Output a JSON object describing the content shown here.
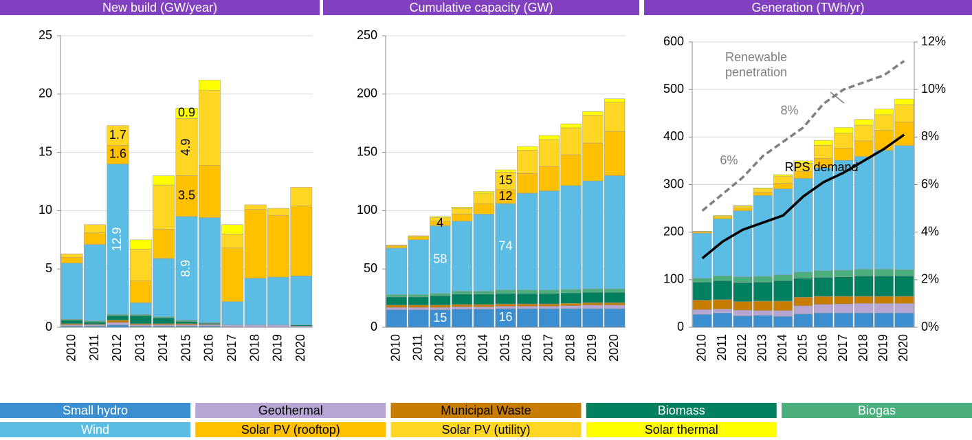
{
  "chart_data": [
    {
      "type": "bar",
      "stacked": true,
      "title": "New build (GW/year)",
      "categories": [
        "2010",
        "2011",
        "2012",
        "2013",
        "2014",
        "2015",
        "2016",
        "2017",
        "2018",
        "2019",
        "2020"
      ],
      "ylim": [
        0,
        25
      ],
      "yticks": [
        0,
        5,
        10,
        15,
        20,
        25
      ],
      "grid": true,
      "series": [
        {
          "name": "Small hydro",
          "color": "#3b8fd0",
          "label_color": "#ffffff",
          "values": [
            0.1,
            0.1,
            0.2,
            0.1,
            0.1,
            0.1,
            0.1,
            0.05,
            0,
            0,
            0
          ]
        },
        {
          "name": "Geothermal",
          "color": "#b7a5d3",
          "label_color": "#000000",
          "values": [
            0.1,
            0.1,
            0.2,
            0.1,
            0.1,
            0.1,
            0.1,
            0.15,
            0.2,
            0.2,
            0.1
          ]
        },
        {
          "name": "Municipal Waste",
          "color": "#c77c02",
          "label_color": "#000000",
          "values": [
            0.1,
            0.05,
            0.2,
            0.1,
            0.1,
            0.1,
            0.05,
            0,
            0,
            0,
            0
          ]
        },
        {
          "name": "Biomass",
          "color": "#00805f",
          "label_color": "#ffffff",
          "values": [
            0.3,
            0.2,
            0.4,
            0.7,
            0.5,
            0.2,
            0.1,
            0,
            0,
            0,
            0.1
          ]
        },
        {
          "name": "Biogas",
          "color": "#4aaf7c",
          "label_color": "#ffffff",
          "values": [
            0.1,
            0.1,
            0.1,
            0.1,
            0.1,
            0.1,
            0.05,
            0,
            0,
            0,
            0
          ]
        },
        {
          "name": "Wind",
          "color": "#5bbde3",
          "label_color": "#ffffff",
          "values": [
            4.8,
            6.55,
            12.9,
            1.0,
            5.0,
            8.9,
            9.0,
            2.0,
            4.0,
            4.1,
            4.2
          ],
          "value_labels": [
            null,
            null,
            "12.9",
            null,
            null,
            "8.9",
            null,
            null,
            null,
            null,
            null
          ]
        },
        {
          "name": "Solar PV (rooftop)",
          "color": "#ffc000",
          "label_color": "#000000",
          "values": [
            0.5,
            1.0,
            1.6,
            1.9,
            2.5,
            3.5,
            4.5,
            4.6,
            5.9,
            5.3,
            6.0
          ],
          "value_labels": [
            null,
            null,
            "1.6",
            null,
            null,
            "3.5",
            null,
            null,
            null,
            null,
            null
          ]
        },
        {
          "name": "Solar PV (utility)",
          "color": "#ffd624",
          "label_color": "#000000",
          "values": [
            0.3,
            0.7,
            1.7,
            2.7,
            3.8,
            4.9,
            6.4,
            1.2,
            0.4,
            0.6,
            1.6
          ],
          "value_labels": [
            null,
            null,
            "1.7",
            null,
            null,
            "4.9",
            null,
            null,
            null,
            null,
            null
          ]
        },
        {
          "name": "Solar thermal",
          "color": "#ffff00",
          "label_color": "#000000",
          "values": [
            0,
            0,
            0,
            0.8,
            0.8,
            0.9,
            0.9,
            0.8,
            0,
            0,
            0
          ],
          "value_labels": [
            null,
            null,
            null,
            null,
            null,
            "0.9",
            null,
            null,
            null,
            null,
            null
          ]
        }
      ]
    },
    {
      "type": "bar",
      "stacked": true,
      "title": "Cumulative capacity (GW)",
      "categories": [
        "2010",
        "2011",
        "2012",
        "2013",
        "2014",
        "2015",
        "2016",
        "2017",
        "2018",
        "2019",
        "2020"
      ],
      "ylim": [
        0,
        250
      ],
      "yticks": [
        0,
        50,
        100,
        150,
        200,
        250
      ],
      "grid": true,
      "series": [
        {
          "values": [
            15,
            15,
            15,
            15.5,
            15.5,
            16,
            16,
            16,
            16,
            16,
            16
          ],
          "value_labels": [
            null,
            null,
            "15",
            null,
            null,
            "16",
            null,
            null,
            null,
            null,
            null
          ]
        },
        {
          "values": [
            2,
            2,
            2,
            2,
            2,
            2,
            2,
            2,
            2.5,
            3,
            3
          ]
        },
        {
          "values": [
            2,
            2,
            2,
            2,
            2,
            2,
            2,
            2,
            2,
            2,
            2
          ]
        },
        {
          "values": [
            7,
            7,
            8,
            9,
            9,
            9,
            9,
            9,
            9,
            9,
            9
          ]
        },
        {
          "values": [
            2,
            2,
            2,
            2.5,
            2.5,
            3,
            3,
            3,
            3,
            3,
            3
          ]
        },
        {
          "values": [
            40,
            47,
            58,
            60,
            66,
            74,
            83,
            85,
            89,
            92.5,
            97
          ],
          "value_labels": [
            null,
            null,
            "58",
            null,
            null,
            "74",
            null,
            null,
            null,
            null,
            null
          ]
        },
        {
          "values": [
            2,
            2.5,
            4,
            6,
            9,
            12,
            17,
            21,
            26.5,
            32.5,
            38
          ],
          "value_labels": [
            null,
            null,
            "4",
            null,
            null,
            "12",
            null,
            null,
            null,
            null,
            null
          ]
        },
        {
          "values": [
            0.5,
            1.0,
            3,
            5,
            9,
            15,
            20,
            23,
            23,
            24,
            25
          ],
          "value_labels": [
            null,
            null,
            null,
            null,
            null,
            "15",
            null,
            null,
            null,
            null,
            null
          ]
        },
        {
          "values": [
            0,
            0,
            1,
            1,
            1.5,
            2,
            3,
            3.5,
            3.5,
            3,
            3
          ]
        }
      ]
    },
    {
      "type": "bar",
      "stacked": true,
      "title": "Generation (TWh/yr)",
      "categories": [
        "2010",
        "2011",
        "2012",
        "2013",
        "2014",
        "2015",
        "2016",
        "2017",
        "2018",
        "2019",
        "2020"
      ],
      "ylim": [
        0,
        600
      ],
      "yticks": [
        0,
        100,
        200,
        300,
        400,
        500,
        600
      ],
      "grid": true,
      "y2lim": [
        0,
        12
      ],
      "y2ticks": [
        {
          "value": 0,
          "label": "0%"
        },
        {
          "value": 2,
          "label": "2%"
        },
        {
          "value": 4,
          "label": "4%"
        },
        {
          "value": 6,
          "label": "6%"
        },
        {
          "value": 8,
          "label": "8%"
        },
        {
          "value": 10,
          "label": "10%"
        },
        {
          "value": 12,
          "label": "12%"
        }
      ],
      "series": [
        {
          "values": [
            27,
            30,
            24,
            25,
            23,
            28,
            30,
            30,
            30,
            30,
            30
          ]
        },
        {
          "values": [
            10,
            8,
            12,
            10,
            12,
            17,
            18,
            19,
            20,
            20,
            20
          ]
        },
        {
          "values": [
            20,
            20,
            18,
            20,
            20,
            18,
            17,
            16,
            15,
            15,
            15
          ]
        },
        {
          "values": [
            38,
            40,
            40,
            40,
            43,
            40,
            40,
            41,
            43,
            43,
            43
          ]
        },
        {
          "values": [
            8,
            10,
            12,
            12,
            12,
            13,
            14,
            14,
            14,
            14,
            13
          ]
        },
        {
          "values": [
            95,
            120,
            139,
            170,
            181,
            197,
            216,
            231,
            237,
            250,
            261
          ]
        },
        {
          "values": [
            3,
            4,
            6,
            7,
            12,
            15,
            20,
            26,
            33,
            42,
            50
          ]
        },
        {
          "values": [
            1,
            3,
            4,
            7,
            15,
            17,
            28,
            31,
            33,
            33,
            36
          ]
        },
        {
          "values": [
            0,
            0,
            1,
            2,
            3,
            5,
            10,
            12,
            12,
            12,
            12
          ]
        },
        {
          "name": "Renewable penetration",
          "type": "line",
          "axis": "y2",
          "color": "#808080",
          "dash": true,
          "values": [
            4.9,
            5.6,
            6.3,
            7.2,
            7.8,
            8.4,
            9.4,
            10.0,
            10.3,
            10.6,
            11.2
          ],
          "value_labels": [
            null,
            null,
            "6%",
            null,
            null,
            "8%",
            null,
            null,
            null,
            null,
            null
          ]
        },
        {
          "name": "RPS demand",
          "type": "line",
          "axis": "y2",
          "color": "#000000",
          "dash": false,
          "values": [
            2.9,
            3.6,
            4.1,
            4.4,
            4.7,
            5.5,
            6.1,
            6.5,
            7.0,
            7.5,
            8.1
          ]
        }
      ]
    }
  ]
}
